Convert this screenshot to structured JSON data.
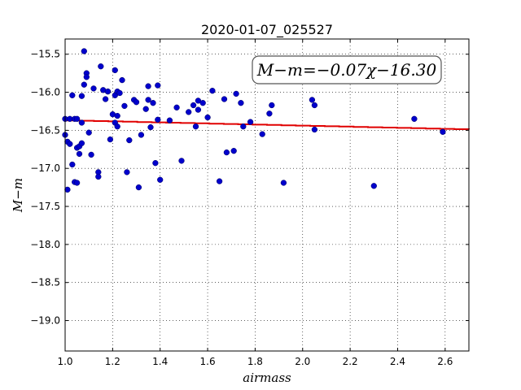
{
  "chart_data": {
    "type": "scatter",
    "title": "2020-01-07_025527",
    "xlabel": "airmass",
    "ylabel": "M−m",
    "xlim": [
      1.0,
      2.7
    ],
    "ylim": [
      -19.4,
      -15.3
    ],
    "y_inverted": true,
    "grid": true,
    "grid_style": "dotted",
    "xticks": [
      1.0,
      1.2,
      1.4,
      1.6,
      1.8,
      2.0,
      2.2,
      2.4,
      2.6
    ],
    "xtick_labels": [
      "1.0",
      "1.2",
      "1.4",
      "1.6",
      "1.8",
      "2.0",
      "2.2",
      "2.4",
      "2.6"
    ],
    "yticks": [
      -15.5,
      -16.0,
      -16.5,
      -17.0,
      -17.5,
      -18.0,
      -18.5,
      -19.0
    ],
    "ytick_labels": [
      "−15.5",
      "−16.0",
      "−16.5",
      "−17.0",
      "−17.5",
      "−18.0",
      "−18.5",
      "−19.0"
    ],
    "annotation": "M−m=−0.07χ−16.30",
    "fit": {
      "slope": -0.07,
      "intercept": -16.3,
      "color": "#e00000"
    },
    "marker_color": "#0000cc",
    "x": [
      1.0,
      1.0,
      1.01,
      1.01,
      1.02,
      1.02,
      1.03,
      1.03,
      1.04,
      1.04,
      1.05,
      1.05,
      1.05,
      1.06,
      1.06,
      1.07,
      1.07,
      1.07,
      1.08,
      1.08,
      1.09,
      1.09,
      1.1,
      1.11,
      1.12,
      1.14,
      1.14,
      1.15,
      1.16,
      1.17,
      1.18,
      1.18,
      1.19,
      1.2,
      1.21,
      1.21,
      1.21,
      1.22,
      1.22,
      1.22,
      1.23,
      1.24,
      1.25,
      1.26,
      1.27,
      1.29,
      1.3,
      1.31,
      1.32,
      1.34,
      1.35,
      1.35,
      1.36,
      1.37,
      1.38,
      1.39,
      1.39,
      1.4,
      1.44,
      1.47,
      1.49,
      1.52,
      1.54,
      1.55,
      1.56,
      1.56,
      1.58,
      1.6,
      1.62,
      1.65,
      1.67,
      1.68,
      1.71,
      1.72,
      1.74,
      1.75,
      1.78,
      1.83,
      1.86,
      1.87,
      1.92,
      2.04,
      2.05,
      2.05,
      2.3,
      2.47,
      2.59
    ],
    "y": [
      -16.35,
      -16.56,
      -17.28,
      -16.65,
      -16.68,
      -16.35,
      -16.04,
      -16.95,
      -17.18,
      -16.35,
      -17.19,
      -16.35,
      -16.73,
      -16.81,
      -16.71,
      -16.67,
      -16.05,
      -16.4,
      -15.46,
      -15.9,
      -15.75,
      -15.8,
      -16.53,
      -16.82,
      -15.95,
      -17.05,
      -17.11,
      -15.66,
      -15.97,
      -16.09,
      -15.99,
      -15.99,
      -16.62,
      -16.29,
      -16.4,
      -16.04,
      -15.71,
      -15.99,
      -16.45,
      -16.31,
      -16.01,
      -15.84,
      -16.18,
      -17.05,
      -16.63,
      -16.1,
      -16.13,
      -17.25,
      -16.56,
      -16.22,
      -16.1,
      -15.92,
      -16.46,
      -16.14,
      -16.93,
      -15.91,
      -16.36,
      -17.15,
      -16.37,
      -16.2,
      -16.9,
      -16.26,
      -16.17,
      -16.45,
      -16.11,
      -16.23,
      -16.14,
      -16.33,
      -15.98,
      -17.17,
      -16.09,
      -16.79,
      -16.77,
      -16.02,
      -16.14,
      -16.45,
      -16.39,
      -16.55,
      -16.28,
      -16.17,
      -17.19,
      -16.1,
      -16.17,
      -16.49,
      -17.23,
      -16.35,
      -16.52
    ]
  }
}
